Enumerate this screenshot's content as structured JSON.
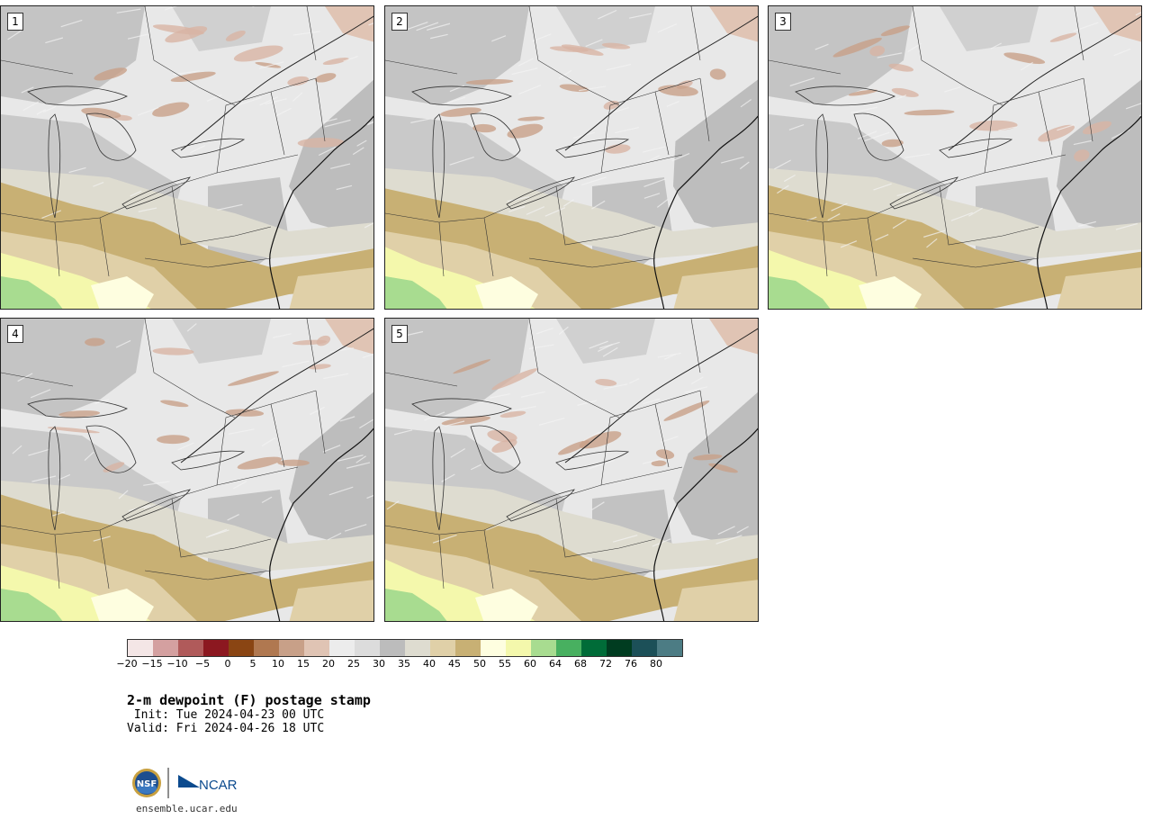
{
  "panels": [
    {
      "label": "1"
    },
    {
      "label": "2"
    },
    {
      "label": "3"
    },
    {
      "label": "4"
    },
    {
      "label": "5"
    }
  ],
  "colorbar": {
    "colors": [
      "#f4e6e6",
      "#d4a0a0",
      "#b05a5a",
      "#8c1820",
      "#8a4513",
      "#b07850",
      "#c8a088",
      "#e0c4b4",
      "#ececec",
      "#dcdcdc",
      "#bcbcbc",
      "#dedcd0",
      "#e0d0a8",
      "#c8b074",
      "#fefee0",
      "#f4f8ac",
      "#a8dc90",
      "#48b060",
      "#006c38",
      "#003c20",
      "#1c5058",
      "#4c7c84"
    ],
    "ticks": [
      "−20",
      "−15",
      "−10",
      "−5",
      "0",
      "5",
      "10",
      "15",
      "20",
      "25",
      "30",
      "35",
      "40",
      "45",
      "50",
      "55",
      "60",
      "64",
      "68",
      "72",
      "76",
      "80"
    ]
  },
  "title": "2-m dewpoint (F) postage stamp",
  "init": " Init: Tue 2024-04-23 00 UTC",
  "valid": "Valid: Fri 2024-04-26 18 UTC",
  "logos": {
    "nsf": "NSF",
    "ncar": "NCAR"
  },
  "site": "ensemble.ucar.edu"
}
